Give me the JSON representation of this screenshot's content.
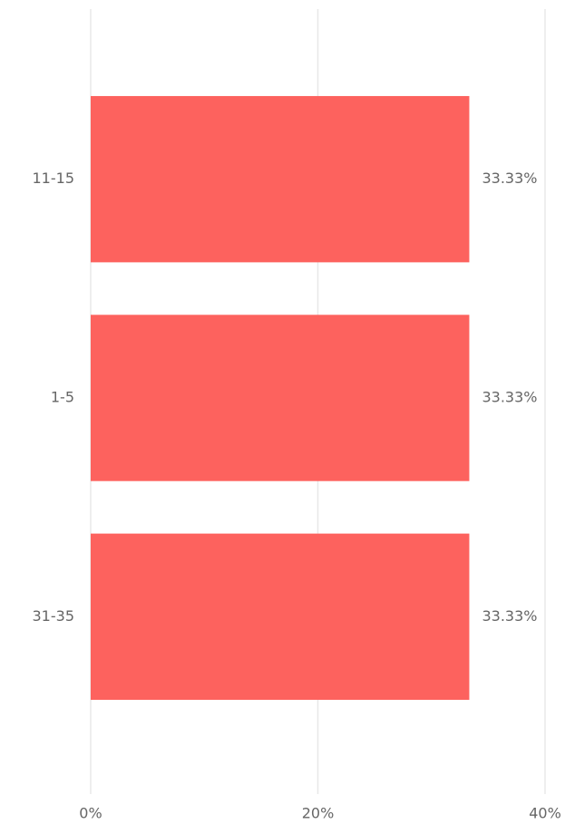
{
  "chart_data": {
    "type": "bar",
    "orientation": "horizontal",
    "categories": [
      "11-15",
      "1-5",
      "31-35"
    ],
    "values": [
      33.33,
      33.33,
      33.33
    ],
    "value_labels": [
      "33.33%",
      "33.33%",
      "33.33%"
    ],
    "color": "#fd625e",
    "xlim": [
      0,
      40
    ],
    "xticks": [
      {
        "value": 0,
        "label": "0%"
      },
      {
        "value": 20,
        "label": "20%"
      },
      {
        "value": 40,
        "label": "40%"
      }
    ],
    "grid": true
  }
}
